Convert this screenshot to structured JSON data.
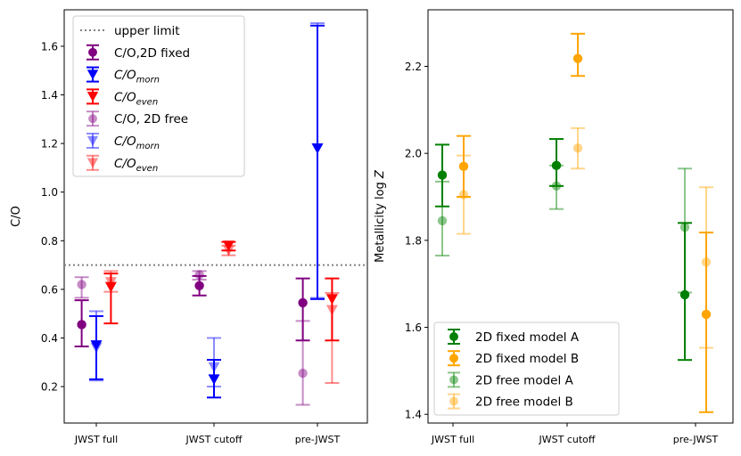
{
  "chart_data": [
    {
      "type": "scatter",
      "subtype": "errorbar",
      "ylabel": "C/O",
      "ylim": [
        0.05,
        1.75
      ],
      "yticks": [
        0.2,
        0.4,
        0.6,
        0.8,
        1.0,
        1.2,
        1.4,
        1.6
      ],
      "ytick_labels": [
        "0.2",
        "0.4",
        "0.6",
        "0.8",
        "1.0",
        "1.2",
        "1.4",
        "1.6"
      ],
      "categories": [
        "JWST full",
        "JWST cutoff",
        "pre-JWST"
      ],
      "hline": {
        "y": 0.7,
        "label": "upper limit",
        "color": "#808080",
        "style": "dotted"
      },
      "legend_position": "top-left",
      "series": [
        {
          "name": "C/O,2D fixed",
          "marker": "circle",
          "color": "#800080",
          "alpha": 1.0,
          "points": [
            {
              "cat": 0,
              "offset": -0.2,
              "y": 0.455,
              "low": 0.365,
              "high": 0.555
            },
            {
              "cat": 1,
              "offset": -0.2,
              "y": 0.615,
              "low": 0.575,
              "high": 0.655
            },
            {
              "cat": 2,
              "offset": -0.2,
              "y": 0.545,
              "low": 0.39,
              "high": 0.645
            }
          ]
        },
        {
          "name": "C/O_morn",
          "marker": "triangle-down",
          "color": "#0000ff",
          "alpha": 1.0,
          "points": [
            {
              "cat": 0,
              "offset": 0.0,
              "y": 0.37,
              "low": 0.23,
              "high": 0.49
            },
            {
              "cat": 1,
              "offset": 0.0,
              "y": 0.23,
              "low": 0.155,
              "high": 0.31
            },
            {
              "cat": 2,
              "offset": 0.0,
              "y": 1.18,
              "low": 0.56,
              "high": 1.685
            }
          ]
        },
        {
          "name": "C/O_even",
          "marker": "triangle-down",
          "color": "#ff0000",
          "alpha": 1.0,
          "points": [
            {
              "cat": 0,
              "offset": 0.2,
              "y": 0.61,
              "low": 0.46,
              "high": 0.665
            },
            {
              "cat": 1,
              "offset": 0.2,
              "y": 0.78,
              "low": 0.76,
              "high": 0.795
            },
            {
              "cat": 2,
              "offset": 0.2,
              "y": 0.56,
              "low": 0.39,
              "high": 0.645
            }
          ]
        },
        {
          "name": "C/O, 2D free",
          "marker": "circle",
          "color": "#800080",
          "alpha": 0.45,
          "points": [
            {
              "cat": 0,
              "offset": -0.2,
              "y": 0.62,
              "low": 0.565,
              "high": 0.65
            },
            {
              "cat": 1,
              "offset": -0.2,
              "y": 0.66,
              "low": 0.64,
              "high": 0.675
            },
            {
              "cat": 2,
              "offset": -0.2,
              "y": 0.255,
              "low": 0.125,
              "high": 0.47
            }
          ]
        },
        {
          "name": "C/O_morn",
          "marker": "triangle-down",
          "color": "#0000ff",
          "alpha": 0.45,
          "points": [
            {
              "cat": 0,
              "offset": 0.0,
              "y": 0.36,
              "low": 0.225,
              "high": 0.51
            },
            {
              "cat": 1,
              "offset": 0.0,
              "y": 0.28,
              "low": 0.2,
              "high": 0.4
            },
            {
              "cat": 2,
              "offset": 0.0,
              "y": 1.18,
              "low": 0.565,
              "high": 1.695
            }
          ]
        },
        {
          "name": "C/O_even",
          "marker": "triangle-down",
          "color": "#ff0000",
          "alpha": 0.45,
          "points": [
            {
              "cat": 0,
              "offset": 0.2,
              "y": 0.63,
              "low": 0.59,
              "high": 0.675
            },
            {
              "cat": 1,
              "offset": 0.2,
              "y": 0.76,
              "low": 0.74,
              "high": 0.78
            },
            {
              "cat": 2,
              "offset": 0.2,
              "y": 0.515,
              "low": 0.215,
              "high": 0.585
            }
          ]
        }
      ],
      "legend_entries": [
        {
          "kind": "line",
          "text": "upper limit",
          "series": -1
        },
        {
          "kind": "marker",
          "text": "C/O,2D fixed",
          "series": 0
        },
        {
          "kind": "marker",
          "base": "C/O",
          "sub": "morn",
          "series": 1
        },
        {
          "kind": "marker",
          "base": "C/O",
          "sub": "even",
          "series": 2
        },
        {
          "kind": "marker",
          "text": "C/O, 2D free",
          "series": 3
        },
        {
          "kind": "marker",
          "base": "C/O",
          "sub": "morn",
          "series": 4
        },
        {
          "kind": "marker",
          "base": "C/O",
          "sub": "even",
          "series": 5
        }
      ]
    },
    {
      "type": "scatter",
      "subtype": "errorbar",
      "ylabel_prefix": "Metallicity log",
      "ylabel_var": "Z",
      "ylim": [
        1.38,
        2.33
      ],
      "yticks": [
        1.4,
        1.6,
        1.8,
        2.0,
        2.2
      ],
      "ytick_labels": [
        "1.4",
        "1.6",
        "1.8",
        "2.0",
        "2.2"
      ],
      "categories": [
        "JWST full",
        "JWST cutoff",
        "pre-JWST"
      ],
      "legend_position": "bottom-left",
      "series": [
        {
          "name": "2D fixed model A",
          "marker": "circle",
          "color": "#008000",
          "alpha": 1.0,
          "points": [
            {
              "cat": 0,
              "offset": -0.12,
              "y": 1.95,
              "low": 1.878,
              "high": 2.02
            },
            {
              "cat": 1,
              "offset": -0.12,
              "y": 1.972,
              "low": 1.925,
              "high": 2.033
            },
            {
              "cat": 2,
              "offset": -0.12,
              "y": 1.675,
              "low": 1.525,
              "high": 1.84
            }
          ]
        },
        {
          "name": "2D fixed model B",
          "marker": "circle",
          "color": "#ffa500",
          "alpha": 1.0,
          "points": [
            {
              "cat": 0,
              "offset": 0.12,
              "y": 1.97,
              "low": 1.9,
              "high": 2.04
            },
            {
              "cat": 1,
              "offset": 0.12,
              "y": 2.218,
              "low": 2.178,
              "high": 2.275
            },
            {
              "cat": 2,
              "offset": 0.12,
              "y": 1.63,
              "low": 1.405,
              "high": 1.818
            }
          ]
        },
        {
          "name": "2D free model A",
          "marker": "circle",
          "color": "#008000",
          "alpha": 0.45,
          "points": [
            {
              "cat": 0,
              "offset": -0.12,
              "y": 1.845,
              "low": 1.765,
              "high": 1.935
            },
            {
              "cat": 1,
              "offset": -0.12,
              "y": 1.925,
              "low": 1.872,
              "high": 1.972
            },
            {
              "cat": 2,
              "offset": -0.12,
              "y": 1.83,
              "low": 1.68,
              "high": 1.965
            }
          ]
        },
        {
          "name": "2D free model B",
          "marker": "circle",
          "color": "#ffa500",
          "alpha": 0.45,
          "points": [
            {
              "cat": 0,
              "offset": 0.12,
              "y": 1.905,
              "low": 1.815,
              "high": 1.995
            },
            {
              "cat": 1,
              "offset": 0.12,
              "y": 2.012,
              "low": 1.965,
              "high": 2.058
            },
            {
              "cat": 2,
              "offset": 0.12,
              "y": 1.75,
              "low": 1.553,
              "high": 1.922
            }
          ]
        }
      ],
      "legend_entries": [
        {
          "kind": "marker",
          "text": "2D fixed model A",
          "series": 0
        },
        {
          "kind": "marker",
          "text": "2D fixed model B",
          "series": 1
        },
        {
          "kind": "marker",
          "text": "2D free model A",
          "series": 2
        },
        {
          "kind": "marker",
          "text": "2D free model B",
          "series": 3
        }
      ]
    }
  ]
}
